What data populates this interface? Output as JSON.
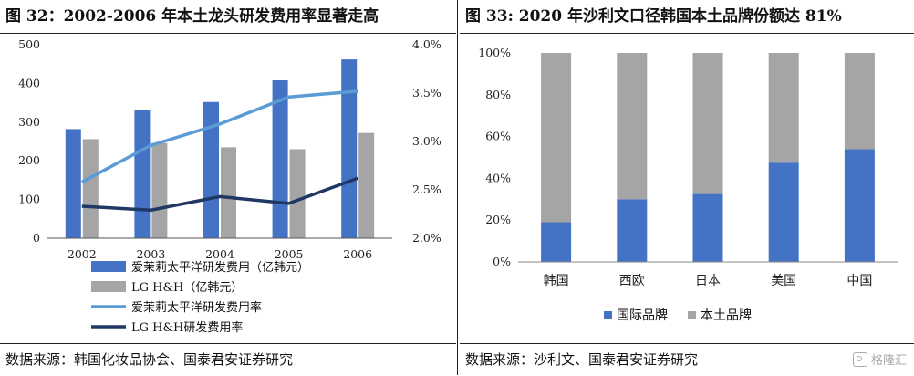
{
  "left": {
    "title": "图 32：2002-2006 年本土龙头研发费用率显著走高",
    "source": "数据来源：韩国化妆品协会、国泰君安证券研究"
  },
  "right": {
    "title": "图 33: 2020 年沙利文口径韩国本土品牌份额达 81%",
    "source": "数据来源：沙利文、国泰君安证券研究"
  },
  "watermark": {
    "text": "格隆汇",
    "icon": "gelonghui-logo-icon"
  },
  "colors": {
    "blue": "#4472C4",
    "gray": "#A5A5A5",
    "light_blue": "#5B9BD5",
    "navy": "#203864"
  },
  "chart_data": [
    {
      "type": "bar",
      "categories": [
        "2002",
        "2003",
        "2004",
        "2005",
        "2006"
      ],
      "y_ticks": [
        "0",
        "100",
        "200",
        "300",
        "400",
        "500"
      ],
      "y2_ticks": [
        "2.0%",
        "2.5%",
        "3.0%",
        "3.5%",
        "4.0%"
      ],
      "ylim": [
        0,
        500
      ],
      "y2lim": [
        2.0,
        4.0
      ],
      "series": [
        {
          "name": "爱茉莉太平洋研发费用（亿韩元）",
          "kind": "bar",
          "axis": "left",
          "color": "#4472C4",
          "values": [
            282,
            331,
            352,
            408,
            462
          ]
        },
        {
          "name": "LG H&H（亿韩元）",
          "kind": "bar",
          "axis": "left",
          "color": "#A5A5A5",
          "values": [
            256,
            246,
            235,
            230,
            272
          ]
        },
        {
          "name": "爱茉莉太平洋研发费用率",
          "kind": "line",
          "axis": "right",
          "color": "#5B9BD5",
          "values": [
            2.58,
            2.96,
            3.18,
            3.46,
            3.52
          ]
        },
        {
          "name": "LG H&H研发费用率",
          "kind": "line",
          "axis": "right",
          "color": "#203864",
          "values": [
            2.33,
            2.29,
            2.43,
            2.36,
            2.62
          ]
        }
      ]
    },
    {
      "type": "bar",
      "stacked": true,
      "categories": [
        "韩国",
        "西欧",
        "日本",
        "美国",
        "中国"
      ],
      "y_ticks": [
        "0%",
        "20%",
        "40%",
        "60%",
        "80%",
        "100%"
      ],
      "ylim": [
        0,
        100
      ],
      "series": [
        {
          "name": "国际品牌",
          "color": "#4472C4",
          "values": [
            19,
            30,
            32.5,
            47.5,
            54
          ]
        },
        {
          "name": "本土品牌",
          "color": "#A5A5A5",
          "values": [
            81,
            70,
            67.5,
            52.5,
            46
          ]
        }
      ],
      "legend": "bottom"
    }
  ]
}
